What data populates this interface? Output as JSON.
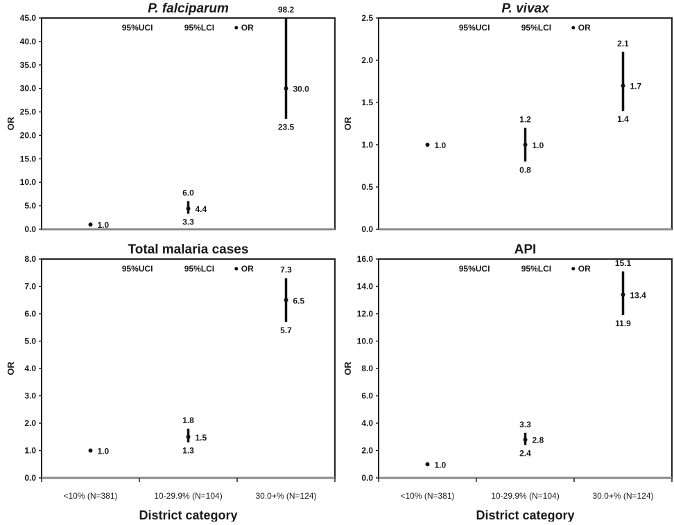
{
  "chart_data": [
    {
      "type": "scatter",
      "title": "P. falciparum",
      "title_italic": true,
      "ylabel": "OR",
      "xlabel": "",
      "ylim": [
        0,
        45
      ],
      "yticks": [
        "0.0",
        "5.0",
        "10.0",
        "15.0",
        "20.0",
        "25.0",
        "30.0",
        "35.0",
        "40.0",
        "45.0"
      ],
      "ystep": 5,
      "categories": [],
      "legend": {
        "uci": "95%UCI",
        "lci": "95%LCI",
        "or": "OR"
      },
      "points": [
        {
          "or": 1.0,
          "lci": null,
          "uci": null,
          "or_label": "1.0",
          "lci_label": "",
          "uci_label": ""
        },
        {
          "or": 4.4,
          "lci": 3.3,
          "uci": 6.0,
          "or_label": "4.4",
          "lci_label": "3.3",
          "uci_label": "6.0"
        },
        {
          "or": 30.0,
          "lci": 23.5,
          "uci": 98.2,
          "or_label": "30.0",
          "lci_label": "23.5",
          "uci_label": "98.2"
        }
      ]
    },
    {
      "type": "scatter",
      "title": "P. vivax",
      "title_italic": true,
      "ylabel": "OR",
      "xlabel": "",
      "ylim": [
        0,
        2.5
      ],
      "yticks": [
        "0.0",
        "0.5",
        "1.0",
        "1.5",
        "2.0",
        "2.5"
      ],
      "ystep": 0.5,
      "categories": [],
      "legend": {
        "uci": "95%UCI",
        "lci": "95%LCI",
        "or": "OR"
      },
      "points": [
        {
          "or": 1.0,
          "lci": null,
          "uci": null,
          "or_label": "1.0",
          "lci_label": "",
          "uci_label": ""
        },
        {
          "or": 1.0,
          "lci": 0.8,
          "uci": 1.2,
          "or_label": "1.0",
          "lci_label": "0.8",
          "uci_label": "1.2"
        },
        {
          "or": 1.7,
          "lci": 1.4,
          "uci": 2.1,
          "or_label": "1.7",
          "lci_label": "1.4",
          "uci_label": "2.1"
        }
      ]
    },
    {
      "type": "scatter",
      "title": "Total malaria cases",
      "title_italic": false,
      "ylabel": "OR",
      "xlabel": "District category",
      "ylim": [
        0,
        8
      ],
      "yticks": [
        "0.0",
        "1.0",
        "2.0",
        "3.0",
        "4.0",
        "5.0",
        "6.0",
        "7.0",
        "8.0"
      ],
      "ystep": 1,
      "categories": [
        "<10% (N=381)",
        "10-29.9% (N=104)",
        "30.0+% (N=124)"
      ],
      "legend": {
        "uci": "95%UCI",
        "lci": "95%LCI",
        "or": "OR"
      },
      "points": [
        {
          "or": 1.0,
          "lci": null,
          "uci": null,
          "or_label": "1.0",
          "lci_label": "",
          "uci_label": ""
        },
        {
          "or": 1.5,
          "lci": 1.3,
          "uci": 1.8,
          "or_label": "1.5",
          "lci_label": "1.3",
          "uci_label": "1.8"
        },
        {
          "or": 6.5,
          "lci": 5.7,
          "uci": 7.3,
          "or_label": "6.5",
          "lci_label": "5.7",
          "uci_label": "7.3"
        }
      ]
    },
    {
      "type": "scatter",
      "title": "API",
      "title_italic": false,
      "ylabel": "OR",
      "xlabel": "District category",
      "ylim": [
        0,
        16
      ],
      "yticks": [
        "0.0",
        "2.0",
        "4.0",
        "6.0",
        "8.0",
        "10.0",
        "12.0",
        "14.0",
        "16.0"
      ],
      "ystep": 2,
      "categories": [
        "<10% (N=381)",
        "10-29.9% (N=104)",
        "30.0+% (N=124)"
      ],
      "legend": {
        "uci": "95%UCI",
        "lci": "95%LCI",
        "or": "OR"
      },
      "points": [
        {
          "or": 1.0,
          "lci": null,
          "uci": null,
          "or_label": "1.0",
          "lci_label": "",
          "uci_label": ""
        },
        {
          "or": 2.8,
          "lci": 2.4,
          "uci": 3.3,
          "or_label": "2.8",
          "lci_label": "2.4",
          "uci_label": "3.3"
        },
        {
          "or": 13.4,
          "lci": 11.9,
          "uci": 15.1,
          "or_label": "13.4",
          "lci_label": "11.9",
          "uci_label": "15.1"
        }
      ]
    }
  ]
}
